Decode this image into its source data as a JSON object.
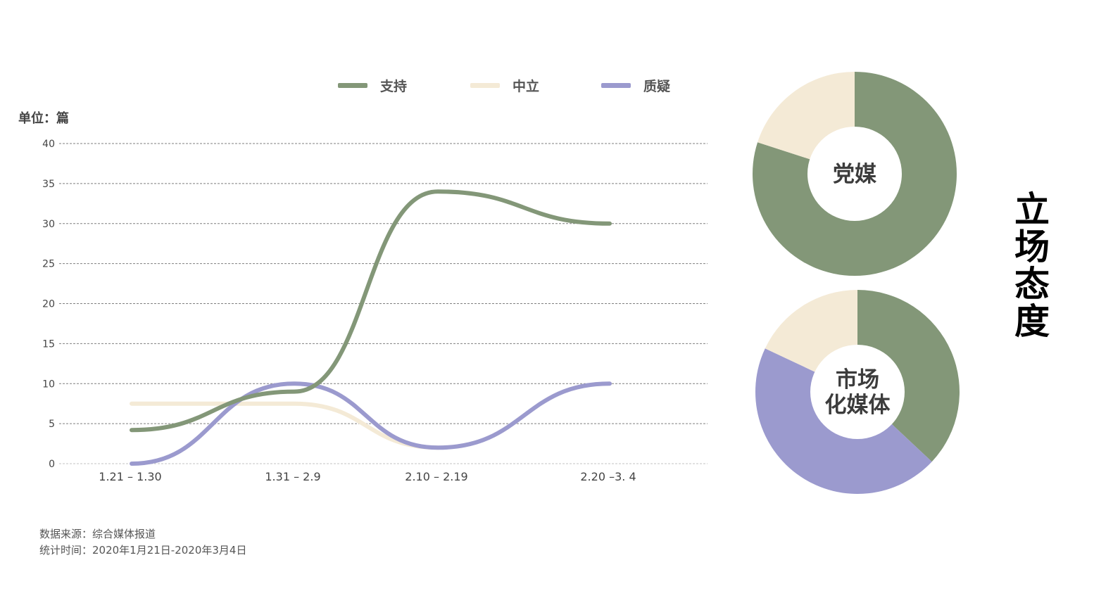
{
  "legend": [
    {
      "name": "支持",
      "color": "#839778"
    },
    {
      "name": "中立",
      "color": "#f4ead6"
    },
    {
      "name": "质疑",
      "color": "#9b9ace"
    }
  ],
  "unit_label": "单位：篇",
  "side_title": "立场态度",
  "notes": {
    "source": "数据来源：综合媒体报道",
    "period": "统计时间：2020年1月21日-2020年3月4日"
  },
  "chart_data": [
    {
      "type": "line",
      "title": "",
      "xlabel": "",
      "ylabel": "单位：篇",
      "categories": [
        "1.21 – 1.30",
        "1.31 – 2.9",
        "2.10 – 2.19",
        "2.20 –3. 4"
      ],
      "ylim": [
        0,
        40
      ],
      "yticks": [
        0,
        5,
        10,
        15,
        20,
        25,
        30,
        35,
        40
      ],
      "grid": true,
      "legend_position": "top",
      "series": [
        {
          "name": "支持",
          "color": "#839778",
          "values": [
            4,
            9,
            34,
            30
          ]
        },
        {
          "name": "中立",
          "color": "#f4ead6",
          "values": [
            7.5,
            7.5,
            2,
            null
          ]
        },
        {
          "name": "质疑",
          "color": "#9b9ace",
          "values": [
            0,
            10,
            2,
            10
          ]
        }
      ]
    },
    {
      "type": "pie",
      "title": "党媒",
      "slices": [
        {
          "name": "支持",
          "value": 80,
          "color": "#839778"
        },
        {
          "name": "中立",
          "value": 20,
          "color": "#f4ead6"
        }
      ]
    },
    {
      "type": "pie",
      "title": "市场化媒体",
      "title_lines": [
        "市场",
        "化媒体"
      ],
      "slices": [
        {
          "name": "支持",
          "value": 37,
          "color": "#839778"
        },
        {
          "name": "质疑",
          "value": 45,
          "color": "#9b9ace"
        },
        {
          "name": "中立",
          "value": 18,
          "color": "#f4ead6"
        }
      ]
    }
  ]
}
